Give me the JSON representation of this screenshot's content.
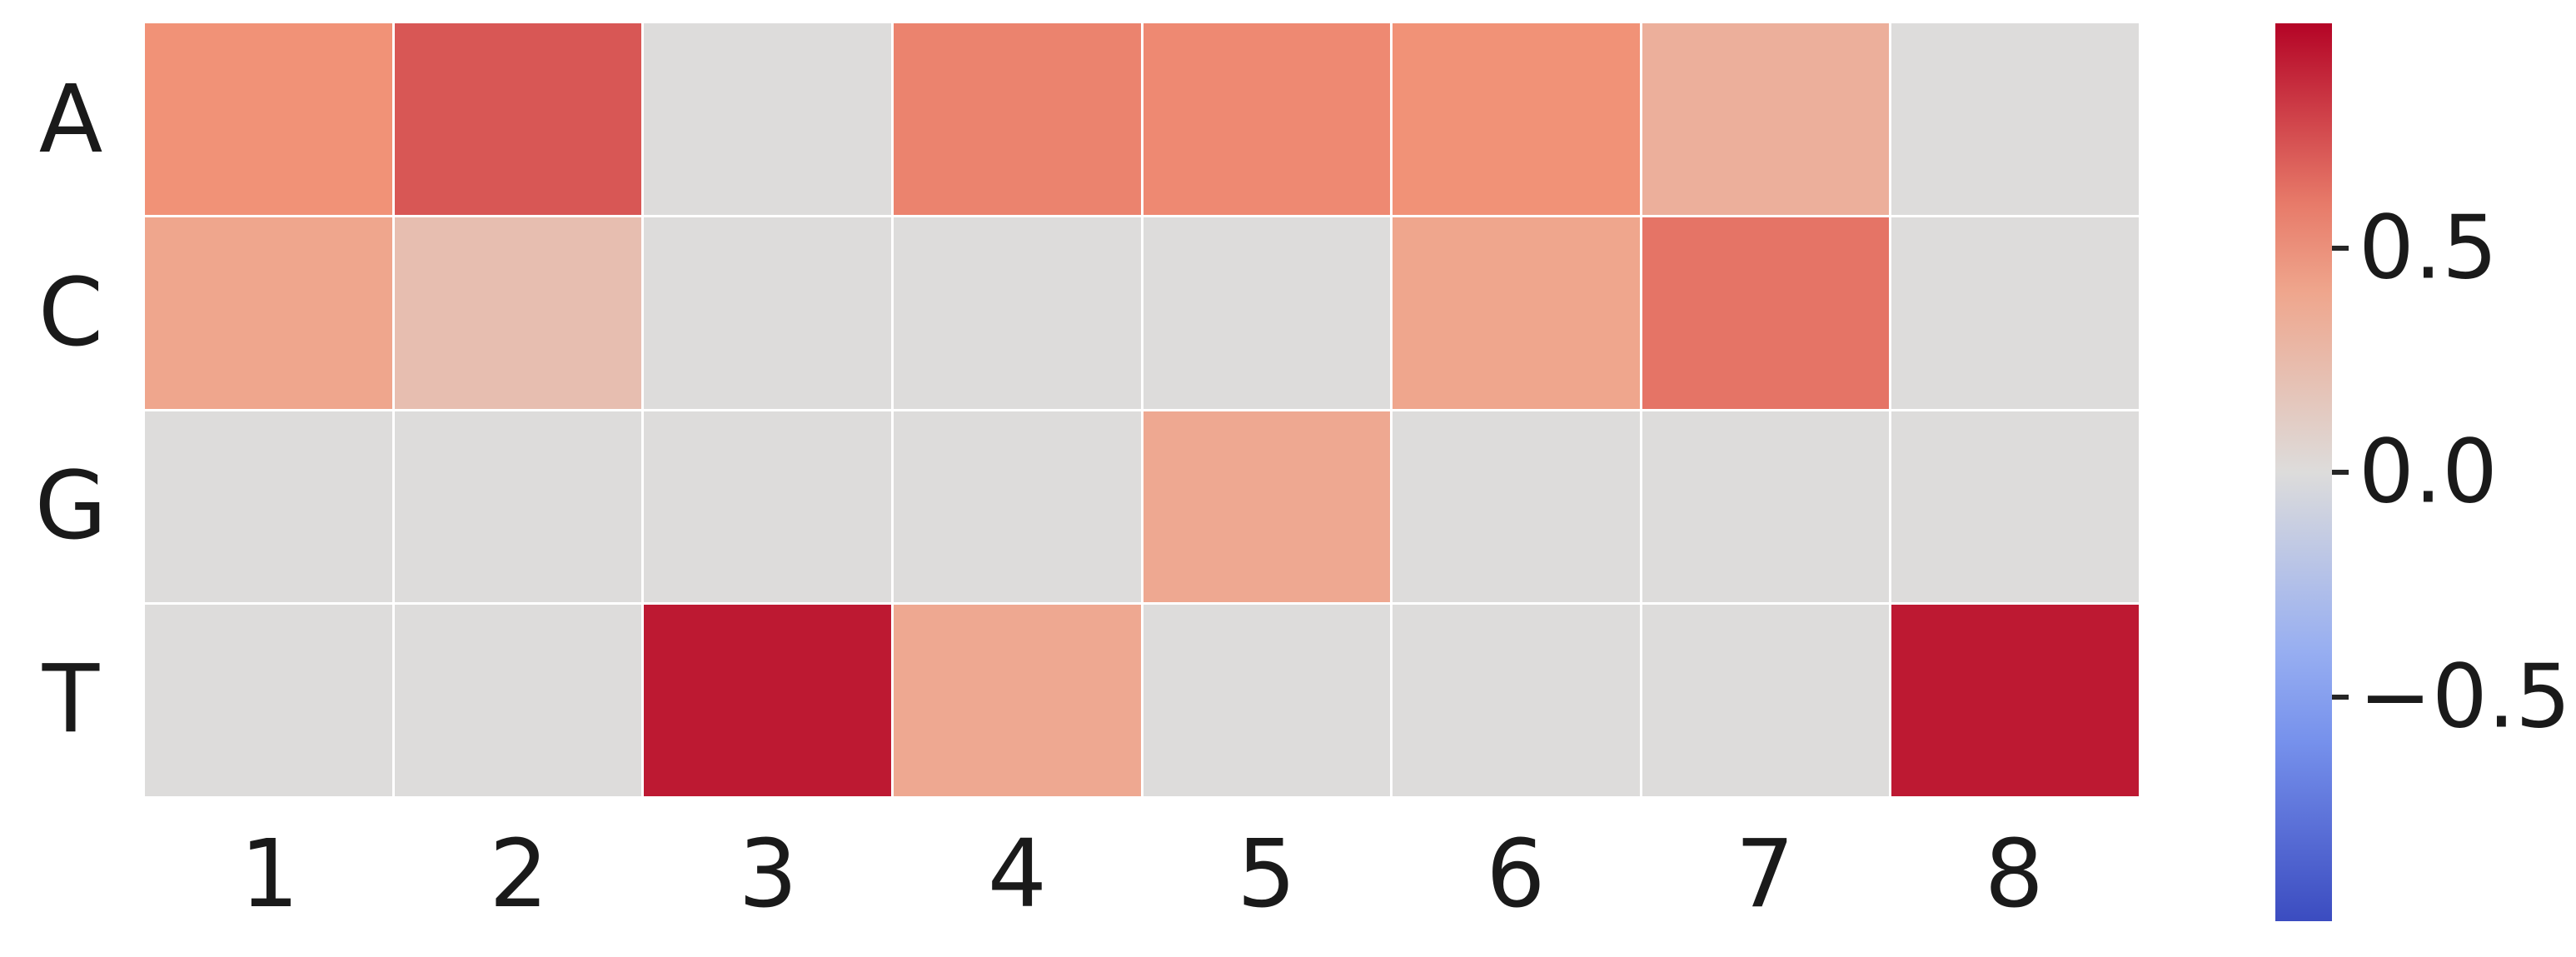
{
  "figure": {
    "background_color": "#ffffff",
    "text_color": "#1a1a1a"
  },
  "chart_data": {
    "type": "heatmap",
    "title": "",
    "xlabel": "",
    "ylabel": "",
    "rows": [
      "A",
      "C",
      "G",
      "T"
    ],
    "columns": [
      "1",
      "2",
      "3",
      "4",
      "5",
      "6",
      "7",
      "8"
    ],
    "values": [
      [
        0.52,
        0.72,
        0.0,
        0.57,
        0.55,
        0.52,
        0.33,
        0.0
      ],
      [
        0.4,
        0.22,
        0.0,
        0.0,
        0.0,
        0.4,
        0.62,
        0.0
      ],
      [
        0.0,
        0.0,
        0.0,
        0.0,
        0.38,
        0.0,
        0.0,
        0.0
      ],
      [
        0.0,
        0.0,
        0.93,
        0.38,
        0.0,
        0.0,
        0.0,
        0.93
      ]
    ],
    "colormap": "coolwarm",
    "vmin": -1.0,
    "vmax": 1.0,
    "grid": false,
    "cell_gap_color": "#ffffff",
    "colorbar": {
      "position": "right",
      "ticks": [
        0.5,
        0.0,
        -0.5
      ],
      "tick_labels": [
        "0.5",
        "0.0",
        "−0.5"
      ],
      "top_color": "#b40426",
      "center_color": "#dddcdb",
      "bottom_color": "#3b4cc0"
    }
  }
}
